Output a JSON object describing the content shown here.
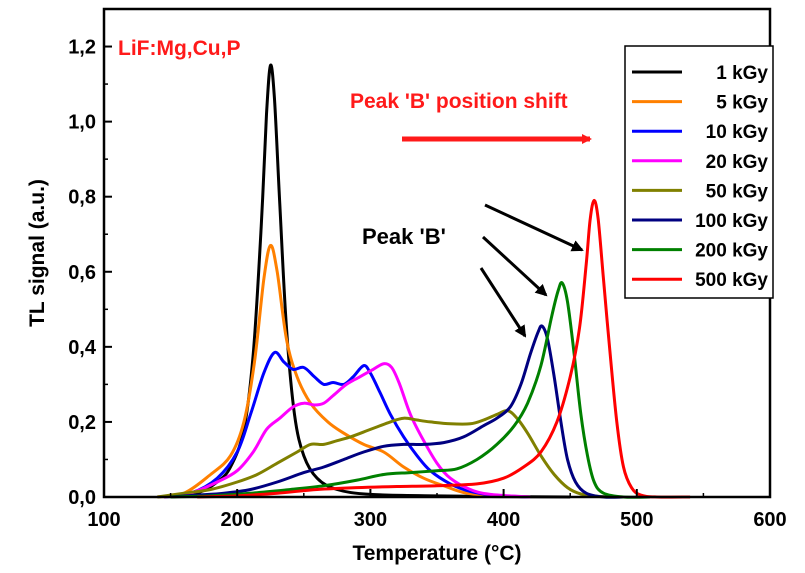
{
  "chart_data": {
    "type": "line",
    "xlabel": "Temperature (°C)",
    "ylabel": "TL signal (a.u.)",
    "xlim": [
      100,
      600
    ],
    "ylim": [
      0,
      1.3
    ],
    "x_ticks": [
      "100",
      "200",
      "300",
      "400",
      "500",
      "600"
    ],
    "y_ticks": [
      "0,0",
      "0,2",
      "0,4",
      "0,6",
      "0,8",
      "1,0",
      "1,2"
    ],
    "legend_position": "top-right",
    "annotations": {
      "material": "LiF:Mg,Cu,P",
      "shift": "Peak 'B' position shift",
      "peak": "Peak 'B'"
    },
    "series": [
      {
        "name": "1 kGy",
        "color": "#000000",
        "points": [
          [
            150,
            0
          ],
          [
            170,
            0.01
          ],
          [
            185,
            0.04
          ],
          [
            195,
            0.08
          ],
          [
            205,
            0.18
          ],
          [
            212,
            0.38
          ],
          [
            218,
            0.72
          ],
          [
            222,
            1.02
          ],
          [
            225,
            1.15
          ],
          [
            228,
            1.06
          ],
          [
            232,
            0.78
          ],
          [
            237,
            0.45
          ],
          [
            243,
            0.22
          ],
          [
            250,
            0.11
          ],
          [
            260,
            0.05
          ],
          [
            275,
            0.02
          ],
          [
            300,
            0.007
          ],
          [
            350,
            0.003
          ],
          [
            400,
            0.001
          ],
          [
            450,
            0
          ]
        ]
      },
      {
        "name": "5 kGy",
        "color": "#ff8000",
        "points": [
          [
            140,
            0
          ],
          [
            160,
            0.01
          ],
          [
            180,
            0.06
          ],
          [
            195,
            0.11
          ],
          [
            205,
            0.2
          ],
          [
            213,
            0.36
          ],
          [
            220,
            0.58
          ],
          [
            225,
            0.67
          ],
          [
            230,
            0.6
          ],
          [
            237,
            0.42
          ],
          [
            245,
            0.32
          ],
          [
            255,
            0.25
          ],
          [
            268,
            0.2
          ],
          [
            280,
            0.17
          ],
          [
            295,
            0.14
          ],
          [
            310,
            0.12
          ],
          [
            325,
            0.08
          ],
          [
            340,
            0.05
          ],
          [
            355,
            0.03
          ],
          [
            370,
            0.012
          ],
          [
            390,
            0.004
          ],
          [
            420,
            0
          ]
        ]
      },
      {
        "name": "10 kGy",
        "color": "#0000ff",
        "points": [
          [
            145,
            0
          ],
          [
            165,
            0.01
          ],
          [
            185,
            0.05
          ],
          [
            200,
            0.12
          ],
          [
            210,
            0.22
          ],
          [
            220,
            0.33
          ],
          [
            228,
            0.385
          ],
          [
            235,
            0.36
          ],
          [
            242,
            0.34
          ],
          [
            250,
            0.345
          ],
          [
            258,
            0.32
          ],
          [
            265,
            0.3
          ],
          [
            272,
            0.305
          ],
          [
            280,
            0.3
          ],
          [
            287,
            0.32
          ],
          [
            295,
            0.35
          ],
          [
            300,
            0.33
          ],
          [
            307,
            0.28
          ],
          [
            315,
            0.22
          ],
          [
            325,
            0.16
          ],
          [
            335,
            0.11
          ],
          [
            345,
            0.07
          ],
          [
            360,
            0.035
          ],
          [
            375,
            0.015
          ],
          [
            395,
            0.004
          ],
          [
            420,
            0
          ]
        ]
      },
      {
        "name": "20 kGy",
        "color": "#ff00ff",
        "points": [
          [
            145,
            0
          ],
          [
            165,
            0.01
          ],
          [
            185,
            0.04
          ],
          [
            200,
            0.07
          ],
          [
            212,
            0.12
          ],
          [
            222,
            0.18
          ],
          [
            232,
            0.21
          ],
          [
            242,
            0.24
          ],
          [
            250,
            0.25
          ],
          [
            258,
            0.245
          ],
          [
            265,
            0.25
          ],
          [
            272,
            0.27
          ],
          [
            282,
            0.3
          ],
          [
            292,
            0.32
          ],
          [
            302,
            0.34
          ],
          [
            310,
            0.355
          ],
          [
            316,
            0.345
          ],
          [
            322,
            0.3
          ],
          [
            330,
            0.22
          ],
          [
            340,
            0.15
          ],
          [
            350,
            0.09
          ],
          [
            360,
            0.05
          ],
          [
            375,
            0.02
          ],
          [
            390,
            0.007
          ],
          [
            420,
            0
          ]
        ]
      },
      {
        "name": "50 kGy",
        "color": "#808000",
        "points": [
          [
            140,
            0
          ],
          [
            160,
            0.01
          ],
          [
            180,
            0.02
          ],
          [
            200,
            0.04
          ],
          [
            215,
            0.06
          ],
          [
            230,
            0.09
          ],
          [
            245,
            0.12
          ],
          [
            255,
            0.14
          ],
          [
            265,
            0.14
          ],
          [
            275,
            0.15
          ],
          [
            285,
            0.16
          ],
          [
            300,
            0.18
          ],
          [
            315,
            0.2
          ],
          [
            325,
            0.21
          ],
          [
            335,
            0.205
          ],
          [
            345,
            0.2
          ],
          [
            360,
            0.195
          ],
          [
            375,
            0.195
          ],
          [
            385,
            0.205
          ],
          [
            395,
            0.22
          ],
          [
            403,
            0.23
          ],
          [
            410,
            0.21
          ],
          [
            418,
            0.17
          ],
          [
            428,
            0.11
          ],
          [
            438,
            0.06
          ],
          [
            448,
            0.025
          ],
          [
            458,
            0.008
          ],
          [
            470,
            0.002
          ],
          [
            490,
            0
          ]
        ]
      },
      {
        "name": "100 kGy",
        "color": "#000080",
        "points": [
          [
            150,
            0
          ],
          [
            170,
            0.005
          ],
          [
            190,
            0.01
          ],
          [
            210,
            0.02
          ],
          [
            230,
            0.04
          ],
          [
            250,
            0.065
          ],
          [
            265,
            0.08
          ],
          [
            280,
            0.1
          ],
          [
            295,
            0.12
          ],
          [
            310,
            0.135
          ],
          [
            325,
            0.14
          ],
          [
            340,
            0.14
          ],
          [
            355,
            0.145
          ],
          [
            370,
            0.16
          ],
          [
            385,
            0.19
          ],
          [
            395,
            0.21
          ],
          [
            405,
            0.24
          ],
          [
            413,
            0.3
          ],
          [
            420,
            0.38
          ],
          [
            426,
            0.44
          ],
          [
            429,
            0.455
          ],
          [
            433,
            0.42
          ],
          [
            438,
            0.32
          ],
          [
            443,
            0.2
          ],
          [
            448,
            0.1
          ],
          [
            454,
            0.04
          ],
          [
            462,
            0.01
          ],
          [
            475,
            0
          ],
          [
            490,
            0
          ]
        ]
      },
      {
        "name": "200 kGy",
        "color": "#008000",
        "points": [
          [
            150,
            0
          ],
          [
            180,
            0.003
          ],
          [
            210,
            0.01
          ],
          [
            240,
            0.02
          ],
          [
            265,
            0.03
          ],
          [
            290,
            0.045
          ],
          [
            310,
            0.06
          ],
          [
            330,
            0.065
          ],
          [
            350,
            0.07
          ],
          [
            365,
            0.075
          ],
          [
            380,
            0.1
          ],
          [
            395,
            0.14
          ],
          [
            408,
            0.19
          ],
          [
            418,
            0.25
          ],
          [
            428,
            0.35
          ],
          [
            436,
            0.48
          ],
          [
            441,
            0.55
          ],
          [
            444,
            0.57
          ],
          [
            448,
            0.52
          ],
          [
            453,
            0.38
          ],
          [
            458,
            0.22
          ],
          [
            463,
            0.11
          ],
          [
            468,
            0.04
          ],
          [
            475,
            0.01
          ],
          [
            490,
            0
          ],
          [
            510,
            0
          ]
        ]
      },
      {
        "name": "500 kGy",
        "color": "#ff0000",
        "points": [
          [
            170,
            0
          ],
          [
            200,
            0.003
          ],
          [
            230,
            0.01
          ],
          [
            260,
            0.02
          ],
          [
            290,
            0.025
          ],
          [
            320,
            0.028
          ],
          [
            350,
            0.03
          ],
          [
            380,
            0.035
          ],
          [
            400,
            0.05
          ],
          [
            415,
            0.08
          ],
          [
            428,
            0.12
          ],
          [
            440,
            0.2
          ],
          [
            450,
            0.32
          ],
          [
            457,
            0.45
          ],
          [
            462,
            0.62
          ],
          [
            465,
            0.74
          ],
          [
            468,
            0.79
          ],
          [
            471,
            0.74
          ],
          [
            475,
            0.58
          ],
          [
            480,
            0.38
          ],
          [
            485,
            0.2
          ],
          [
            490,
            0.08
          ],
          [
            496,
            0.025
          ],
          [
            503,
            0.005
          ],
          [
            515,
            0
          ],
          [
            540,
            0
          ]
        ]
      }
    ]
  }
}
